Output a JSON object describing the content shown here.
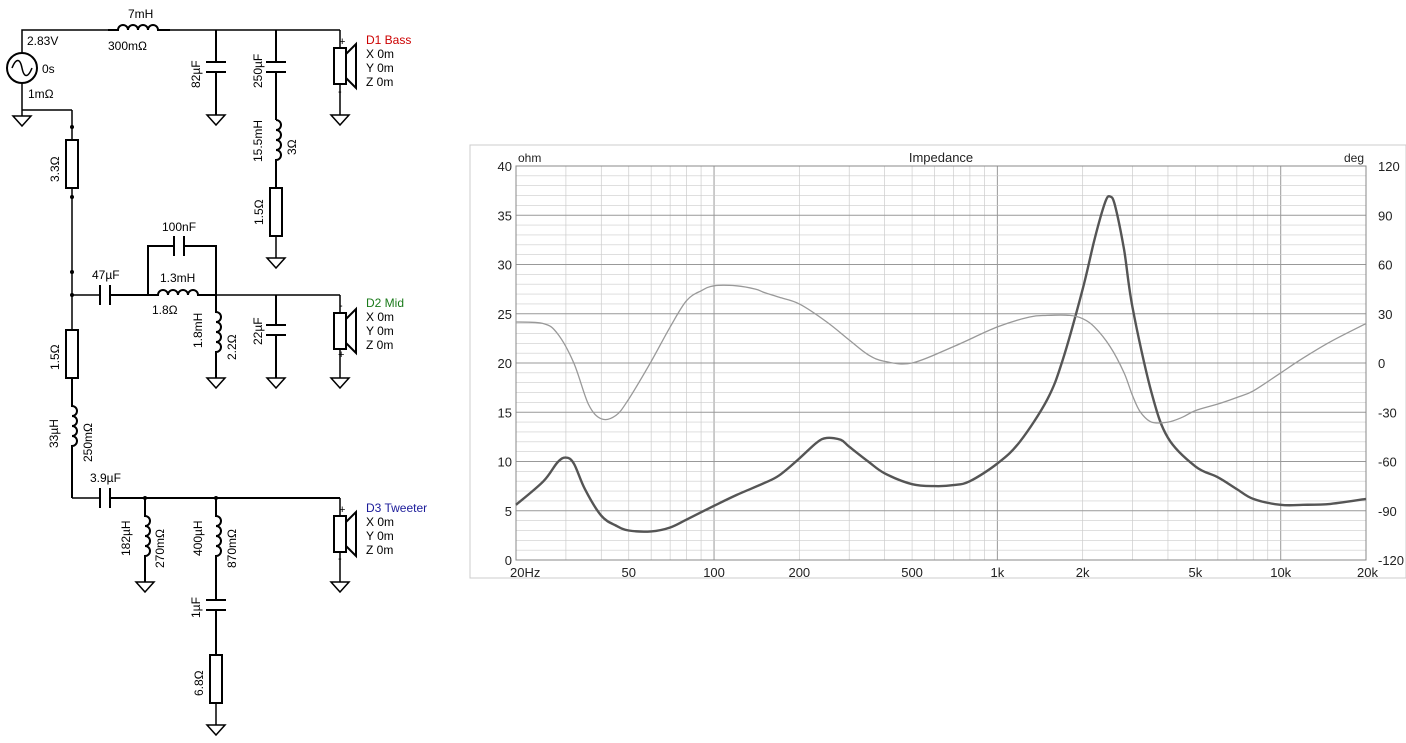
{
  "source": {
    "voltage": "2.83V",
    "phase": "0s",
    "resistance": "1mΩ"
  },
  "components": {
    "l_series_bass": {
      "value": "7mH",
      "resistance": "300mΩ"
    },
    "c_bass_1": "82µF",
    "c_bass_2": "250µF",
    "l_bass_notch": {
      "value": "15.5mH",
      "resistance": "3Ω"
    },
    "r_bass_notch": "1.5Ω",
    "r_series_1": "3.3Ω",
    "c_mid_bypass": "100nF",
    "c_mid_series": "47µF",
    "l_mid_series": {
      "value": "1.3mH",
      "resistance": "1.8Ω"
    },
    "l_mid_shunt": {
      "value": "1.8mH",
      "resistance": "2.2Ω"
    },
    "c_mid_shunt": "22µF",
    "r_series_2": "1.5Ω",
    "l_series_tweeter": {
      "value": "33µH",
      "resistance": "250mΩ"
    },
    "c_tweeter_series": "3.9µF",
    "l_tweeter_shunt_1": {
      "value": "182µH",
      "resistance": "270mΩ"
    },
    "l_tweeter_shunt_2": {
      "value": "400µH",
      "resistance": "870mΩ"
    },
    "c_tweeter_notch": "1µF",
    "r_tweeter_notch": "6.8Ω"
  },
  "drivers": [
    {
      "name": "D1 Bass",
      "color": "#cc0000",
      "x": "X 0m",
      "y": "Y 0m",
      "z": "Z 0m",
      "plus": "+",
      "minus": "-"
    },
    {
      "name": "D2 Mid",
      "color": "#1a7a1a",
      "x": "X 0m",
      "y": "Y 0m",
      "z": "Z 0m",
      "plus": "+",
      "minus": "-"
    },
    {
      "name": "D3 Tweeter",
      "color": "#1a1a99",
      "x": "X 0m",
      "y": "Y 0m",
      "z": "Z 0m",
      "plus": "+",
      "minus": "-"
    }
  ],
  "chart_data": {
    "type": "line",
    "title": "Impedance",
    "ylabel_left": "ohm",
    "ylabel_right": "deg",
    "x_scale": "log",
    "xlim": [
      20,
      20000
    ],
    "ylim_left": [
      0,
      40
    ],
    "ylim_right": [
      -120,
      120
    ],
    "x_ticks": [
      {
        "value": 20,
        "label": "20Hz"
      },
      {
        "value": 50,
        "label": "50"
      },
      {
        "value": 100,
        "label": "100"
      },
      {
        "value": 200,
        "label": "200"
      },
      {
        "value": 500,
        "label": "500"
      },
      {
        "value": 1000,
        "label": "1k"
      },
      {
        "value": 2000,
        "label": "2k"
      },
      {
        "value": 5000,
        "label": "5k"
      },
      {
        "value": 10000,
        "label": "10k"
      },
      {
        "value": 20000,
        "label": "20k"
      }
    ],
    "y_ticks_left": [
      "0",
      "5",
      "10",
      "15",
      "20",
      "25",
      "30",
      "35",
      "40"
    ],
    "y_ticks_right": [
      "-120",
      "-90",
      "-60",
      "-30",
      "0",
      "30",
      "60",
      "90",
      "120"
    ],
    "grid": true,
    "colors": {
      "impedance": "#555555",
      "phase": "#999999",
      "grid": "#cccccc"
    },
    "series": [
      {
        "axis": "left",
        "x": [
          20,
          25,
          28,
          30,
          32,
          35,
          40,
          45,
          50,
          60,
          70,
          80,
          100,
          120,
          150,
          170,
          200,
          230,
          250,
          280,
          300,
          350,
          400,
          500,
          600,
          700,
          800,
          1000,
          1200,
          1500,
          1700,
          2000,
          2200,
          2400,
          2500,
          2600,
          2800,
          3000,
          3500,
          4000,
          5000,
          6000,
          7000,
          8000,
          10000,
          12000,
          15000,
          20000
        ],
        "y": [
          5.6,
          8,
          9.9,
          10.4,
          9.8,
          7.2,
          4.5,
          3.5,
          3.0,
          2.9,
          3.3,
          4.1,
          5.5,
          6.6,
          7.8,
          8.6,
          10.3,
          11.9,
          12.4,
          12.2,
          11.5,
          10.0,
          8.8,
          7.7,
          7.5,
          7.6,
          8.0,
          9.8,
          12.0,
          16.3,
          20.3,
          27.5,
          32.5,
          36.3,
          36.9,
          36.0,
          31.5,
          25.6,
          17.0,
          12.4,
          9.5,
          8.4,
          7.2,
          6.2,
          5.6,
          5.6,
          5.7,
          6.2
        ]
      },
      {
        "axis": "right",
        "x": [
          20,
          25,
          28,
          32,
          36,
          40,
          45,
          50,
          60,
          70,
          80,
          90,
          100,
          120,
          140,
          150,
          170,
          200,
          250,
          300,
          350,
          400,
          500,
          700,
          1000,
          1300,
          1500,
          1800,
          2000,
          2200,
          2500,
          2800,
          3000,
          3200,
          3500,
          4000,
          4500,
          5000,
          6000,
          7000,
          8000,
          10000,
          12000,
          15000,
          20000
        ],
        "y": [
          25,
          24,
          18,
          0,
          -25,
          -34,
          -32,
          -22,
          1,
          22,
          38,
          44,
          47,
          47,
          45,
          43,
          40,
          36,
          25,
          14,
          5,
          1,
          0,
          10,
          22,
          28,
          29,
          29,
          27,
          22,
          10,
          -6,
          -20,
          -30,
          -36,
          -36,
          -33,
          -29,
          -25,
          -21,
          -17,
          -6,
          3,
          13,
          24
        ]
      }
    ]
  }
}
